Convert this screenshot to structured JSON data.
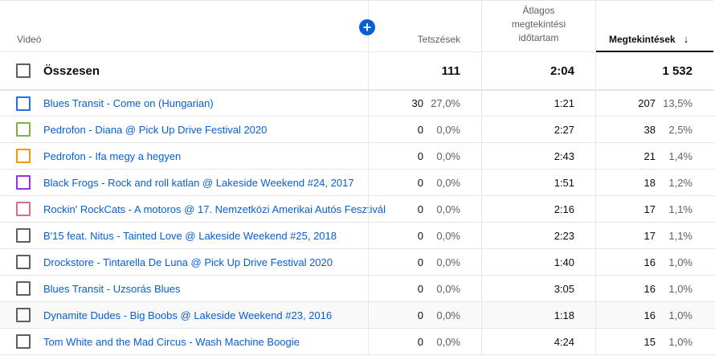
{
  "header": {
    "video": "Videó",
    "likes": "Tetszések",
    "avg_line1": "Átlagos",
    "avg_line2": "megtekintési",
    "avg_line3": "időtartam",
    "views": "Megtekintések",
    "sort_icon": "↓",
    "add_icon": "+"
  },
  "total": {
    "label": "Összesen",
    "likes": "111",
    "avg": "2:04",
    "views": "1 532"
  },
  "colors": {
    "accent": "#065fd4"
  },
  "rows": [
    {
      "title": "Blues Transit - Come on (Hungarian)",
      "color": "#1a73e8",
      "likes": "30",
      "likes_pct": "27,0%",
      "avg": "1:21",
      "views": "207",
      "views_pct": "13,5%"
    },
    {
      "title": "Pedrofon - Diana @ Pick Up Drive Festival 2020",
      "color": "#7cb342",
      "likes": "0",
      "likes_pct": "0,0%",
      "avg": "2:27",
      "views": "38",
      "views_pct": "2,5%"
    },
    {
      "title": "Pedrofon - Ifa megy a hegyen",
      "color": "#f29900",
      "likes": "0",
      "likes_pct": "0,0%",
      "avg": "2:43",
      "views": "21",
      "views_pct": "1,4%"
    },
    {
      "title": "Black Frogs - Rock and roll katlan @ Lakeside Weekend #24, 2017",
      "color": "#9334e6",
      "likes": "0",
      "likes_pct": "0,0%",
      "avg": "1:51",
      "views": "18",
      "views_pct": "1,2%"
    },
    {
      "title": "Rockin' RockCats - A motoros @ 17. Nemzetközi Amerikai Autós Fesztivál",
      "color": "#d56e8a",
      "likes": "0",
      "likes_pct": "0,0%",
      "avg": "2:16",
      "views": "17",
      "views_pct": "1,1%"
    },
    {
      "title": "B'15 feat. Nitus - Tainted Love @ Lakeside Weekend #25, 2018",
      "color": "#5f5f5f",
      "likes": "0",
      "likes_pct": "0,0%",
      "avg": "2:23",
      "views": "17",
      "views_pct": "1,1%"
    },
    {
      "title": "Drockstore - Tintarella De Luna @ Pick Up Drive Festival 2020",
      "color": "#5f5f5f",
      "likes": "0",
      "likes_pct": "0,0%",
      "avg": "1:40",
      "views": "16",
      "views_pct": "1,0%"
    },
    {
      "title": "Blues Transit - Uzsorás Blues",
      "color": "#5f5f5f",
      "likes": "0",
      "likes_pct": "0,0%",
      "avg": "3:05",
      "views": "16",
      "views_pct": "1,0%"
    },
    {
      "title": "Dynamite Dudes - Big Boobs @ Lakeside Weekend #23, 2016",
      "color": "#5f5f5f",
      "likes": "0",
      "likes_pct": "0,0%",
      "avg": "1:18",
      "views": "16",
      "views_pct": "1,0%"
    },
    {
      "title": "Tom White and the Mad Circus - Wash Machine Boogie",
      "color": "#5f5f5f",
      "likes": "0",
      "likes_pct": "0,0%",
      "avg": "4:24",
      "views": "15",
      "views_pct": "1,0%"
    }
  ]
}
